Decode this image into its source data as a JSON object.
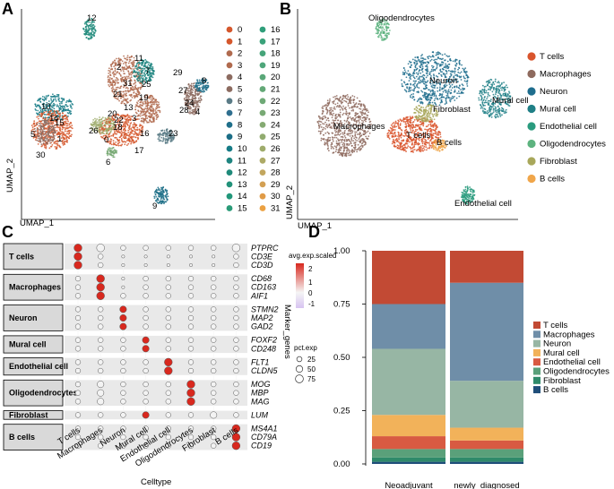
{
  "figure": {
    "panels": [
      "A",
      "B",
      "C",
      "D"
    ]
  },
  "chart_data": [
    {
      "type": "scatter",
      "panel": "A",
      "xlabel": "UMAP_1",
      "ylabel": "UMAP_2",
      "title": "",
      "cluster_labels": [
        "0",
        "1",
        "2",
        "3",
        "4",
        "5",
        "6",
        "7",
        "8",
        "9",
        "10",
        "11",
        "12",
        "13",
        "14",
        "15",
        "16",
        "17",
        "18",
        "19",
        "20",
        "21",
        "22",
        "23",
        "24",
        "25",
        "26",
        "27",
        "28",
        "29",
        "30",
        "31"
      ],
      "cluster_colors": [
        "#d5572c",
        "#d5572c",
        "#b06a4e",
        "#b06a4e",
        "#8c6b60",
        "#8c6b60",
        "#5a7b86",
        "#2f6f8f",
        "#1f6f8a",
        "#1b6d86",
        "#167b86",
        "#1f8580",
        "#1f8a7a",
        "#22927a",
        "#22977a",
        "#2a9b78",
        "#2f9e7a",
        "#3aa27a",
        "#45a479",
        "#4ea67a",
        "#5aa778",
        "#63a877",
        "#6ea976",
        "#78a974",
        "#85aa72",
        "#91ab6f",
        "#9eab6b",
        "#adaa66",
        "#c2a65e",
        "#d3a053",
        "#e09b47",
        "#eba142"
      ],
      "annotations": [
        "12",
        "11",
        "2",
        "7",
        "31",
        "25",
        "21",
        "19",
        "13",
        "20",
        "3",
        "22",
        "18",
        "26",
        "16",
        "17",
        "0",
        "6",
        "23",
        "29",
        "27",
        "24",
        "8",
        "28",
        "4",
        "10",
        "14",
        "15",
        "5",
        "1",
        "30",
        "9"
      ]
    },
    {
      "type": "scatter",
      "panel": "B",
      "xlabel": "UMAP_1",
      "ylabel": "UMAP_2",
      "legend": [
        {
          "label": "T cells",
          "color": "#d9542c"
        },
        {
          "label": "Macrophages",
          "color": "#8e6a5e"
        },
        {
          "label": "Neuron",
          "color": "#1e6d8d"
        },
        {
          "label": "Mural cell",
          "color": "#1f7f86"
        },
        {
          "label": "Endothelial cell",
          "color": "#2a9b7e"
        },
        {
          "label": "Oligodendrocytes",
          "color": "#5db37f"
        },
        {
          "label": "Fibroblast",
          "color": "#a8a75a"
        },
        {
          "label": "B cells",
          "color": "#f0a64a"
        }
      ],
      "annotations": [
        "Oligodendrocytes",
        "Neuron",
        "Fibroblast",
        "Mural cell",
        "Macrophages",
        "T cells",
        "B cells",
        "Endothelial cell"
      ]
    },
    {
      "type": "dot",
      "panel": "C",
      "xlabel": "Celltype",
      "ylabel": "Marker_genes",
      "x": [
        "T cells",
        "Macrophages",
        "Neuron",
        "Mural cell",
        "Endothelial cell",
        "Oligodendrocytes",
        "Fibroblast",
        "B cells"
      ],
      "groups": [
        {
          "name": "T cells",
          "genes": [
            "PTPRC",
            "CD3E",
            "CD3D"
          ]
        },
        {
          "name": "Macrophages",
          "genes": [
            "CD68",
            "CD163",
            "AIF1"
          ]
        },
        {
          "name": "Neuron",
          "genes": [
            "STMN2",
            "MAP2",
            "GAD2"
          ]
        },
        {
          "name": "Mural cell",
          "genes": [
            "FOXF2",
            "CD248"
          ]
        },
        {
          "name": "Endothelial cell",
          "genes": [
            "FLT1",
            "CLDN5"
          ]
        },
        {
          "name": "Oligodendrocytes",
          "genes": [
            "MOG",
            "MBP",
            "MAG"
          ]
        },
        {
          "name": "Fibroblast",
          "genes": [
            "LUM"
          ]
        },
        {
          "name": "B cells",
          "genes": [
            "MS4A1",
            "CD79A",
            "CD19"
          ]
        }
      ],
      "pct_exp": [
        [
          75,
          75,
          25,
          25,
          25,
          25,
          25,
          75
        ],
        [
          75,
          25,
          5,
          5,
          5,
          5,
          5,
          25
        ],
        [
          75,
          25,
          5,
          5,
          5,
          5,
          5,
          25
        ],
        [
          25,
          75,
          5,
          25,
          25,
          25,
          25,
          25
        ],
        [
          25,
          75,
          5,
          25,
          25,
          25,
          25,
          25
        ],
        [
          25,
          75,
          25,
          25,
          25,
          25,
          25,
          25
        ],
        [
          25,
          25,
          50,
          25,
          25,
          25,
          25,
          25
        ],
        [
          25,
          25,
          50,
          25,
          25,
          25,
          25,
          25
        ],
        [
          25,
          25,
          50,
          25,
          25,
          25,
          25,
          25
        ],
        [
          25,
          25,
          25,
          50,
          25,
          25,
          25,
          25
        ],
        [
          25,
          25,
          25,
          50,
          25,
          25,
          25,
          25
        ],
        [
          25,
          25,
          25,
          25,
          75,
          25,
          25,
          25
        ],
        [
          25,
          25,
          25,
          25,
          75,
          25,
          25,
          25
        ],
        [
          25,
          50,
          25,
          25,
          25,
          75,
          25,
          25
        ],
        [
          25,
          50,
          25,
          25,
          25,
          75,
          25,
          25
        ],
        [
          25,
          50,
          25,
          25,
          25,
          75,
          25,
          25
        ],
        [
          25,
          25,
          25,
          50,
          25,
          25,
          50,
          25
        ],
        [
          25,
          25,
          25,
          25,
          25,
          25,
          25,
          75
        ],
        [
          25,
          25,
          25,
          25,
          25,
          25,
          25,
          75
        ],
        [
          25,
          25,
          25,
          25,
          25,
          25,
          25,
          75
        ]
      ],
      "avg_exp_scaled": [
        [
          2.5,
          0,
          0,
          0,
          0,
          0,
          0,
          0
        ],
        [
          2.5,
          0,
          0,
          0,
          0,
          0,
          0,
          0
        ],
        [
          2.5,
          0,
          0,
          0,
          0,
          0,
          0,
          0
        ],
        [
          0,
          2.5,
          0,
          0,
          0,
          0,
          0,
          0
        ],
        [
          0,
          2.5,
          0,
          0,
          0,
          0,
          0,
          0
        ],
        [
          0,
          2.5,
          0,
          0,
          0,
          0,
          0,
          0
        ],
        [
          0,
          0,
          2.5,
          0,
          0,
          0,
          0,
          0
        ],
        [
          0,
          0,
          2.5,
          0,
          0,
          0,
          0,
          0
        ],
        [
          0,
          0,
          2.5,
          0,
          0,
          0,
          0,
          0
        ],
        [
          0,
          0,
          0,
          2.5,
          0,
          0,
          0,
          0
        ],
        [
          0,
          0,
          0,
          2.5,
          0,
          0,
          0,
          0
        ],
        [
          0,
          0,
          0,
          0,
          2.5,
          0,
          0,
          0
        ],
        [
          0,
          0,
          0,
          0,
          2.5,
          0,
          0,
          0
        ],
        [
          0,
          0,
          0,
          0,
          0,
          2.5,
          0,
          0
        ],
        [
          0,
          0,
          0,
          0,
          0,
          2.5,
          0,
          0
        ],
        [
          0,
          0,
          0,
          0,
          0,
          2.5,
          0,
          0
        ],
        [
          0,
          0,
          0,
          2.5,
          0,
          0,
          0,
          0
        ],
        [
          0,
          0,
          0,
          0,
          0,
          0,
          0,
          2.5
        ],
        [
          0,
          0,
          0,
          0,
          0,
          0,
          0,
          2.5
        ],
        [
          0,
          0,
          0,
          0,
          0,
          0,
          0,
          2.5
        ]
      ],
      "color_legend_title": "avg.exp.scaled",
      "color_legend_ticks": [
        "2",
        "1",
        "0",
        "-1"
      ],
      "size_legend_title": "pct.exp",
      "size_legend_values": [
        25,
        50,
        75
      ]
    },
    {
      "type": "bar",
      "panel": "D",
      "stacked": true,
      "categories": [
        "Neoadjuvant",
        "newly_diagnosed"
      ],
      "series": [
        {
          "name": "B cells",
          "values": [
            0.01,
            0.01
          ],
          "color": "#1f4e79"
        },
        {
          "name": "Fibroblast",
          "values": [
            0.02,
            0.02
          ],
          "color": "#2f8a6a"
        },
        {
          "name": "Oligodendrocytes",
          "values": [
            0.04,
            0.04
          ],
          "color": "#5aa07a"
        },
        {
          "name": "Endothelial cell",
          "values": [
            0.06,
            0.04
          ],
          "color": "#d85a42"
        },
        {
          "name": "Mural cell",
          "values": [
            0.1,
            0.06
          ],
          "color": "#f2b25a"
        },
        {
          "name": "Neuron",
          "values": [
            0.31,
            0.22
          ],
          "color": "#97b6a4"
        },
        {
          "name": "Macrophages",
          "values": [
            0.21,
            0.46
          ],
          "color": "#6f8ea8"
        },
        {
          "name": "T cells",
          "values": [
            0.25,
            0.15
          ],
          "color": "#c24a34"
        }
      ],
      "ylim": [
        0,
        1
      ],
      "yticks": [
        "0.00",
        "0.25",
        "0.50",
        "0.75",
        "1.00"
      ],
      "legend_labels": [
        "T cells",
        "Macrophages",
        "Neuron",
        "Mural cell",
        "Endothelial cell",
        "Oligodendrocytes",
        "Fibroblast",
        "B cells"
      ]
    }
  ]
}
